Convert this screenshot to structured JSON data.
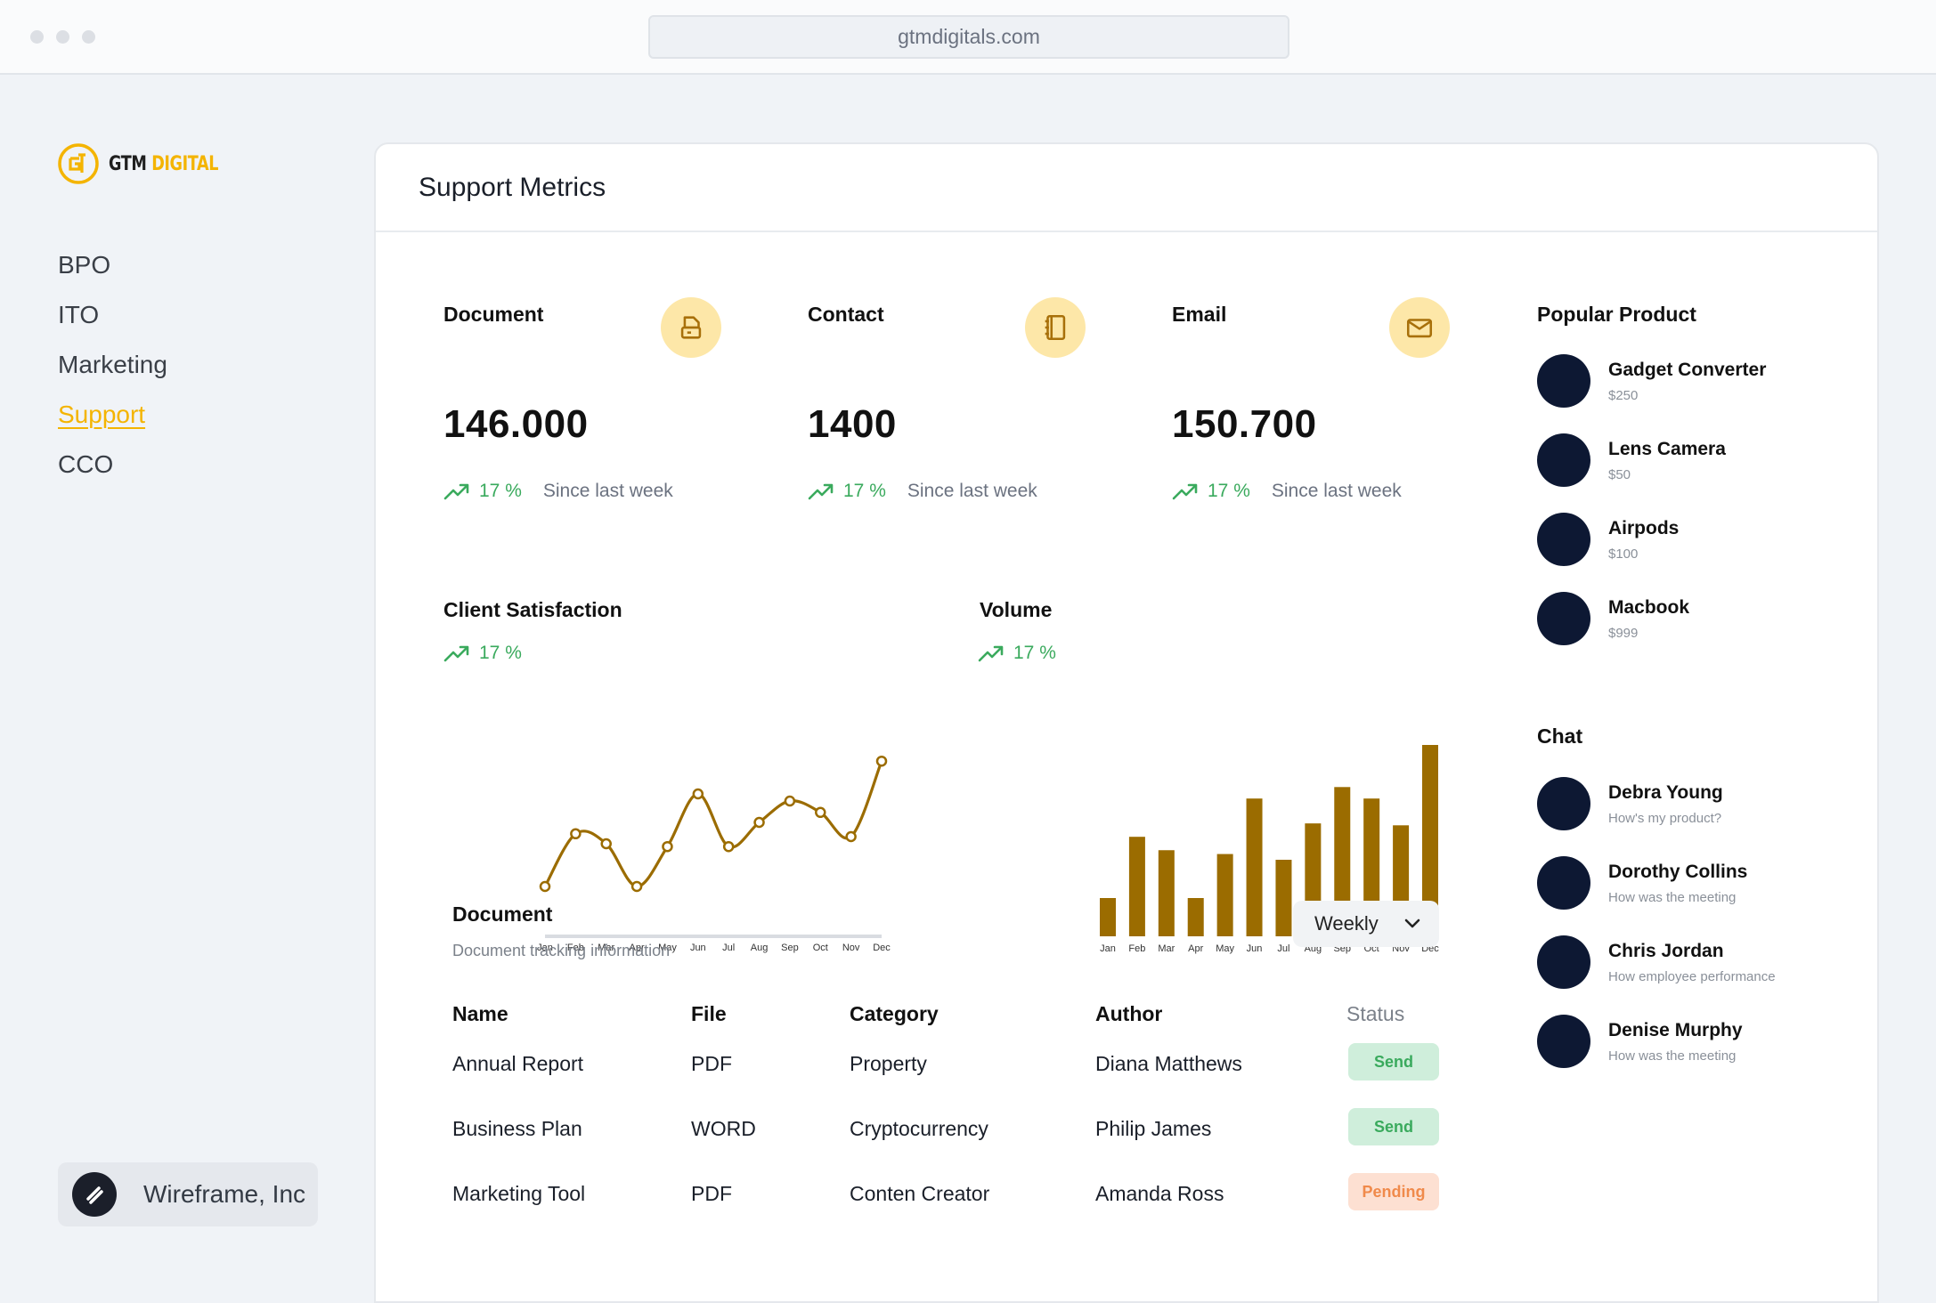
{
  "browser": {
    "url": "gtmdigitals.com"
  },
  "brand": {
    "name": "GTM",
    "accent": "DIGITAL",
    "accent_color": "#f4b400"
  },
  "nav": [
    {
      "label": "BPO",
      "active": false
    },
    {
      "label": "ITO",
      "active": false
    },
    {
      "label": "Marketing",
      "active": false
    },
    {
      "label": "Support",
      "active": true
    },
    {
      "label": "CCO",
      "active": false
    }
  ],
  "company": {
    "label": "Wireframe, Inc",
    "icon": "slash-logo-icon"
  },
  "page": {
    "title": "Support Metrics"
  },
  "stats": [
    {
      "label": "Document",
      "value": "146.000",
      "pct": "17 %",
      "since": "Since last week",
      "icon": "printer-icon"
    },
    {
      "label": "Contact",
      "value": "1400",
      "pct": "17 %",
      "since": "Since last week",
      "icon": "address-book-icon"
    },
    {
      "label": "Email",
      "value": "150.700",
      "pct": "17 %",
      "since": "Since last week",
      "icon": "envelope-icon"
    }
  ],
  "charts_meta": {
    "satisfaction": {
      "title": "Client Satisfaction",
      "pct": "17 %"
    },
    "volume": {
      "title": "Volume",
      "pct": "17 %"
    }
  },
  "chart_data": [
    {
      "type": "line",
      "title": "Client Satisfaction",
      "categories": [
        "Jan",
        "Feb",
        "Mar",
        "Apr",
        "May",
        "Jun",
        "Jul",
        "Aug",
        "Sep",
        "Oct",
        "Nov",
        "Dec"
      ],
      "values": [
        10,
        47,
        40,
        10,
        38,
        75,
        38,
        55,
        70,
        62,
        45,
        98
      ],
      "ylim": [
        0,
        100
      ],
      "color": "#9b6c00"
    },
    {
      "type": "bar",
      "title": "Volume",
      "categories": [
        "Jan",
        "Feb",
        "Mar",
        "Apr",
        "May",
        "Jun",
        "Jul",
        "Aug",
        "Sep",
        "Oct",
        "Nov",
        "Dec"
      ],
      "values": [
        20,
        52,
        45,
        20,
        43,
        72,
        40,
        59,
        78,
        72,
        58,
        100
      ],
      "ylim": [
        0,
        100
      ],
      "color": "#9b6c00"
    }
  ],
  "document_table": {
    "title": "Document",
    "subtitle": "Document tracking information",
    "filter": "Weekly",
    "headers": [
      "Name",
      "File",
      "Category",
      "Author",
      "Status"
    ],
    "rows": [
      {
        "name": "Annual Report",
        "file": "PDF",
        "category": "Property",
        "author": "Diana Matthews",
        "status": "Send"
      },
      {
        "name": "Business Plan",
        "file": "WORD",
        "category": "Cryptocurrency",
        "author": "Philip James",
        "status": "Send"
      },
      {
        "name": "Marketing Tool",
        "file": "PDF",
        "category": "Conten Creator",
        "author": "Amanda Ross",
        "status": "Pending"
      }
    ]
  },
  "popular": {
    "title": "Popular Product",
    "items": [
      {
        "name": "Gadget Converter",
        "price": "$250"
      },
      {
        "name": "Lens Camera",
        "price": "$50"
      },
      {
        "name": "Airpods",
        "price": "$100"
      },
      {
        "name": "Macbook",
        "price": "$999"
      }
    ]
  },
  "chat": {
    "title": "Chat",
    "items": [
      {
        "name": "Debra Young",
        "message": "How's my product?"
      },
      {
        "name": "Dorothy Collins",
        "message": "How was the meeting"
      },
      {
        "name": "Chris Jordan",
        "message": "How employee performance"
      },
      {
        "name": "Denise Murphy",
        "message": "How was the meeting"
      }
    ]
  }
}
